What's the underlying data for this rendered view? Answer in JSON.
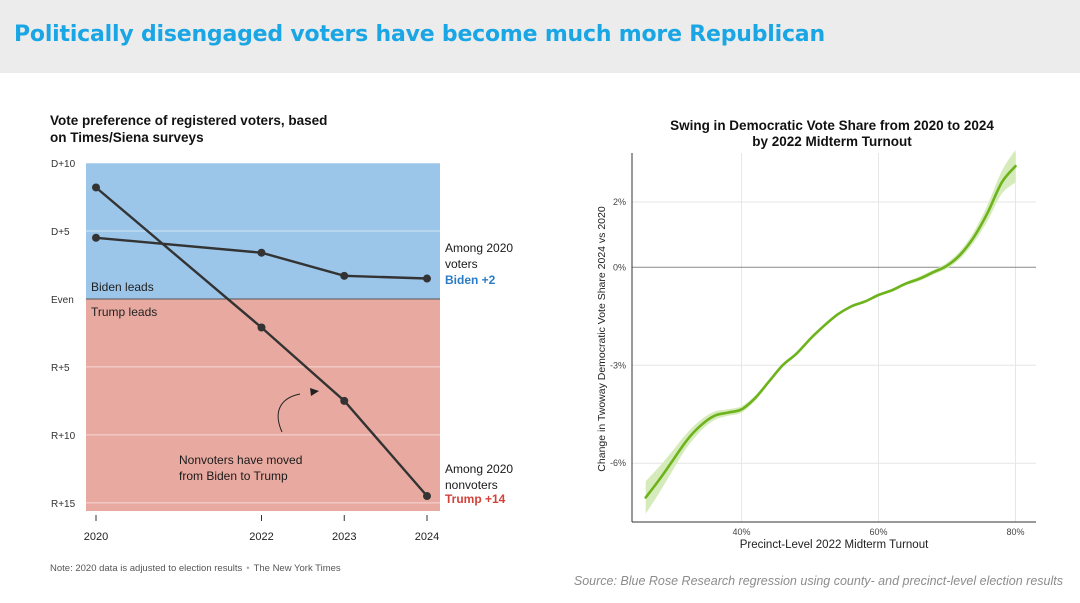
{
  "header": {
    "title": "Politically disengaged voters have become much more Republican"
  },
  "left_chart": {
    "title": "Vote preference of registered voters, based on Times/Siena surveys",
    "note": "Note: 2020 data is adjusted to election results",
    "credit": "The New York Times",
    "region_labels": {
      "top": "Biden leads",
      "bottom": "Trump leads"
    },
    "annotation": [
      "Nonvoters have moved",
      "from Biden to Trump"
    ],
    "series_labels": {
      "voters": [
        "Among 2020",
        "voters"
      ],
      "voters_value": "Biden +2",
      "nonvoters": [
        "Among 2020",
        "nonvoters"
      ],
      "nonvoters_value": "Trump +14"
    },
    "colors": {
      "dem_bg": "#9bc6ea",
      "rep_bg": "#e8aaa0",
      "line": "#333333",
      "dem_text": "#2b7cc4",
      "rep_text": "#d0423a"
    }
  },
  "right_chart": {
    "title_line1": "Swing in Democratic Vote Share from 2020 to 2024",
    "title_line2": "by 2022 Midterm Turnout",
    "colors": {
      "line": "#6db31b",
      "band": "#d6ebbc"
    }
  },
  "source": "Source: Blue Rose Research regression using county- and precinct-level election results",
  "chart_data": [
    {
      "type": "line",
      "x": [
        2020,
        2022,
        2023,
        2024
      ],
      "x_tick_labels": [
        "2020",
        "2022",
        "2023",
        "2024"
      ],
      "y_tick_labels": [
        "D+10",
        "D+5",
        "Even",
        "R+5",
        "R+10",
        "R+15"
      ],
      "y_tick_values": [
        10,
        5,
        0,
        -5,
        -10,
        -15
      ],
      "ylim": [
        -15.6,
        10
      ],
      "series": [
        {
          "name": "Among 2020 voters",
          "values": [
            4.5,
            3.4,
            1.7,
            1.5
          ]
        },
        {
          "name": "Among 2020 nonvoters",
          "values": [
            8.2,
            -2.1,
            -7.5,
            -14.5
          ]
        }
      ]
    },
    {
      "type": "line",
      "xlabel": "Precinct-Level 2022 Midterm Turnout",
      "ylabel": "Change in Twoway Democratic Vote Share 2024 vs 2020",
      "xlim": [
        0.24,
        0.83
      ],
      "ylim": [
        -7.8,
        3.5
      ],
      "x_tick_values": [
        0.4,
        0.6,
        0.8
      ],
      "x_tick_labels": [
        "40%",
        "60%",
        "80%"
      ],
      "y_tick_values": [
        2,
        0,
        -3,
        -6
      ],
      "y_tick_labels": [
        "2%",
        "0%",
        "-3%",
        "-6%"
      ],
      "series": [
        {
          "x": [
            0.26,
            0.28,
            0.3,
            0.32,
            0.34,
            0.36,
            0.38,
            0.4,
            0.42,
            0.44,
            0.46,
            0.48,
            0.5,
            0.52,
            0.54,
            0.56,
            0.58,
            0.6,
            0.62,
            0.64,
            0.66,
            0.68,
            0.7,
            0.72,
            0.74,
            0.76,
            0.78,
            0.8
          ],
          "values": [
            -7.05,
            -6.5,
            -5.9,
            -5.3,
            -4.85,
            -4.55,
            -4.45,
            -4.35,
            -4.0,
            -3.5,
            -3.0,
            -2.65,
            -2.2,
            -1.8,
            -1.45,
            -1.2,
            -1.05,
            -0.85,
            -0.7,
            -0.5,
            -0.35,
            -0.15,
            0.05,
            0.4,
            0.95,
            1.7,
            2.6,
            3.1
          ],
          "upper": [
            -6.55,
            -6.1,
            -5.6,
            -5.08,
            -4.68,
            -4.42,
            -4.35,
            -4.25,
            -3.92,
            -3.44,
            -2.95,
            -2.6,
            -2.16,
            -1.76,
            -1.41,
            -1.16,
            -1.01,
            -0.81,
            -0.65,
            -0.45,
            -0.28,
            -0.08,
            0.14,
            0.52,
            1.12,
            1.95,
            2.95,
            3.6
          ],
          "lower": [
            -7.55,
            -6.9,
            -6.2,
            -5.52,
            -5.02,
            -4.68,
            -4.55,
            -4.45,
            -4.08,
            -3.56,
            -3.05,
            -2.7,
            -2.24,
            -1.84,
            -1.49,
            -1.24,
            -1.09,
            -0.89,
            -0.75,
            -0.55,
            -0.42,
            -0.22,
            -0.04,
            0.28,
            0.78,
            1.45,
            2.25,
            2.6
          ]
        }
      ]
    }
  ]
}
